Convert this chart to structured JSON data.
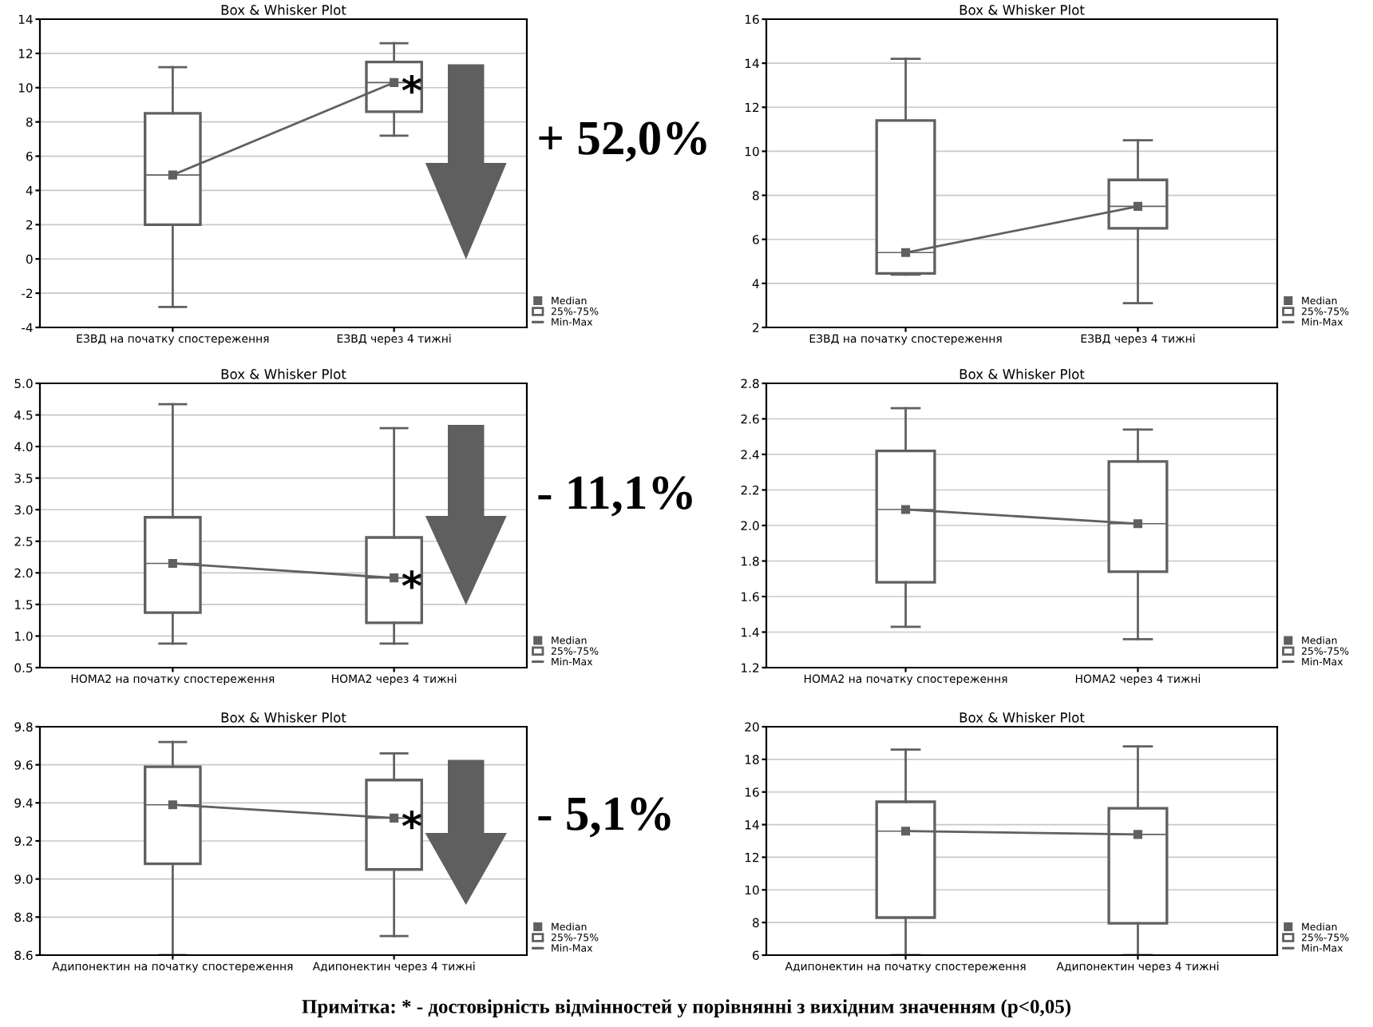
{
  "chart_data": [
    {
      "type": "box",
      "title": "Box & Whisker Plot",
      "categories": [
        "ЕЗВД на початку спостереження",
        "ЕЗВД через 4 тижні"
      ],
      "boxes": [
        {
          "low": -2.8,
          "q1": 2.0,
          "median": 4.9,
          "q3": 8.5,
          "high": 11.2
        },
        {
          "low": 7.2,
          "q1": 8.6,
          "median": 10.3,
          "q3": 11.5,
          "high": 12.6
        }
      ],
      "series": [
        {
          "name": "Median",
          "type": "line",
          "color": "#606060",
          "marker": "square",
          "values": [
            4.9,
            10.3
          ]
        }
      ],
      "ylim": [
        -4,
        14
      ],
      "yticks": [
        -4,
        -2,
        0,
        2,
        4,
        6,
        8,
        10,
        12,
        14
      ],
      "grid": "y",
      "legend": "bottom right",
      "annotations": [
        "25%-75%",
        "Min-Max",
        "+ 52,0%",
        {
          "text": "*",
          "x": "ЕЗВД через 4 тижні",
          "y": 10.3
        }
      ]
    },
    {
      "type": "box",
      "title": "Box & Whisker Plot",
      "categories": [
        "ЕЗВД на початку спостереження",
        "ЕЗВД через 4 тижні"
      ],
      "boxes": [
        {
          "low": 4.4,
          "q1": 4.45,
          "median": 5.4,
          "q3": 11.4,
          "high": 14.2
        },
        {
          "low": 3.1,
          "q1": 6.5,
          "median": 7.5,
          "q3": 8.7,
          "high": 10.5
        }
      ],
      "series": [
        {
          "name": "Median",
          "type": "line",
          "color": "#606060",
          "marker": "square",
          "values": [
            5.4,
            7.5
          ]
        }
      ],
      "ylim": [
        2,
        16
      ],
      "yticks": [
        2,
        4,
        6,
        8,
        10,
        12,
        14,
        16
      ],
      "grid": "y",
      "legend": "bottom right",
      "annotations": [
        "25%-75%",
        "Min-Max"
      ]
    },
    {
      "type": "box",
      "title": "Box & Whisker Plot",
      "categories": [
        "HOMA2 на початку спостереження",
        "HOMA2 через 4 тижні"
      ],
      "boxes": [
        {
          "low": 0.88,
          "q1": 1.37,
          "median": 2.15,
          "q3": 2.88,
          "high": 4.67
        },
        {
          "low": 0.88,
          "q1": 1.21,
          "median": 1.92,
          "q3": 2.56,
          "high": 4.29
        }
      ],
      "series": [
        {
          "name": "Median",
          "type": "line",
          "color": "#606060",
          "marker": "square",
          "values": [
            2.15,
            1.92
          ]
        }
      ],
      "ylim": [
        0.5,
        5.0
      ],
      "yticks": [
        {
          "value": 0.5,
          "label": "0.5"
        },
        {
          "value": 1.0,
          "label": "1.0"
        },
        {
          "value": 1.5,
          "label": "1.5"
        },
        {
          "value": 2.0,
          "label": "2.0"
        },
        {
          "value": 2.5,
          "label": "2.5"
        },
        {
          "value": 3.0,
          "label": "3.0"
        },
        {
          "value": 3.5,
          "label": "3.5"
        },
        {
          "value": 4.0,
          "label": "4.0"
        },
        {
          "value": 4.5,
          "label": "4.5"
        },
        {
          "value": 5.0,
          "label": "5.0"
        }
      ],
      "grid": "y",
      "legend": "bottom right",
      "annotations": [
        "25%-75%",
        "Min-Max",
        "- 11,1%",
        {
          "text": "*",
          "x": "HOMA2 через 4 тижні",
          "y": 1.92
        }
      ]
    },
    {
      "type": "box",
      "title": "Box & Whisker Plot",
      "categories": [
        "HOMA2 на початку спостереження",
        "HOMA2 через 4 тижні"
      ],
      "boxes": [
        {
          "low": 1.43,
          "q1": 1.68,
          "median": 2.09,
          "q3": 2.42,
          "high": 2.66
        },
        {
          "low": 1.36,
          "q1": 1.74,
          "median": 2.01,
          "q3": 2.36,
          "high": 2.54
        }
      ],
      "series": [
        {
          "name": "Median",
          "type": "line",
          "color": "#606060",
          "marker": "square",
          "values": [
            2.09,
            2.01
          ]
        }
      ],
      "ylim": [
        1.2,
        2.8
      ],
      "yticks": [
        1.2,
        1.4,
        1.6,
        1.8,
        {
          "value": 2.0,
          "label": "2.0"
        },
        2.2,
        2.4,
        2.6,
        2.8
      ],
      "grid": "y",
      "legend": "bottom right",
      "annotations": [
        "25%-75%",
        "Min-Max"
      ]
    },
    {
      "type": "box",
      "title": "Box & Whisker Plot",
      "categories": [
        "Адипонектин на початку спостереження",
        "Адипонектин через 4 тижні"
      ],
      "boxes": [
        {
          "low": 8.6,
          "q1": 9.08,
          "median": 9.39,
          "q3": 9.59,
          "high": 9.72
        },
        {
          "low": 8.7,
          "q1": 9.05,
          "median": 9.32,
          "q3": 9.52,
          "high": 9.66
        }
      ],
      "series": [
        {
          "name": "Median",
          "type": "line",
          "color": "#606060",
          "marker": "square",
          "values": [
            9.39,
            9.32
          ]
        }
      ],
      "ylim": [
        8.6,
        9.8
      ],
      "yticks": [
        8.6,
        8.8,
        {
          "value": 9.0,
          "label": "9.0"
        },
        9.2,
        9.4,
        9.6,
        9.8
      ],
      "grid": "y",
      "legend": "bottom right",
      "annotations": [
        "25%-75%",
        "Min-Max",
        "- 5,1%",
        {
          "text": "*",
          "x": "Адипонектин через 4 тижні",
          "y": 9.32
        },
        "Примітка: * - достовірність відмінностей у порівнянні з вихідним значенням (p<0,05)"
      ]
    },
    {
      "type": "box",
      "title": "Box & Whisker Plot",
      "categories": [
        "Адипонектин на початку спостереження",
        "Адипонектин через 4 тижні"
      ],
      "boxes": [
        {
          "low": 6,
          "q1": 8.3,
          "median": 13.6,
          "q3": 15.4,
          "high": 18.6
        },
        {
          "low": 6,
          "q1": 7.95,
          "median": 13.4,
          "q3": 15.0,
          "high": 18.8
        }
      ],
      "series": [
        {
          "name": "Median",
          "type": "line",
          "color": "#606060",
          "marker": "square",
          "values": [
            13.6,
            13.4
          ]
        }
      ],
      "ylim": [
        6,
        20
      ],
      "yticks": [
        6,
        8,
        10,
        12,
        14,
        16,
        18,
        20
      ],
      "grid": "y",
      "legend": "bottom right",
      "annotations": [
        "25%-75%",
        "Min-Max"
      ]
    }
  ]
}
